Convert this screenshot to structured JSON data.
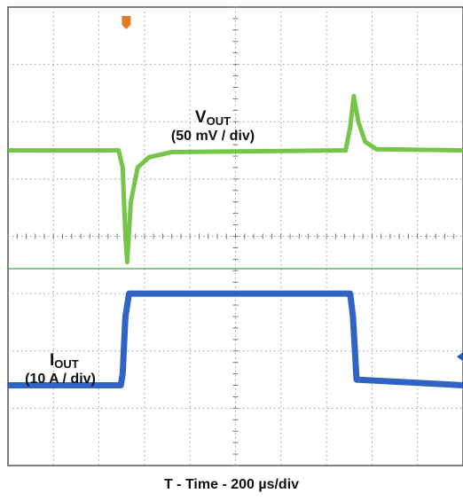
{
  "chart_data": {
    "type": "line",
    "title": "",
    "xlabel": "T - Time - 200 µs/div",
    "ylabel": "",
    "grid": true,
    "divisions": {
      "x": 10,
      "y": 8
    },
    "xlim": [
      0,
      10
    ],
    "ylim": [
      0,
      8
    ],
    "x_unit": "div (200 µs/div)",
    "series": [
      {
        "name": "VOUT",
        "name_main": "V",
        "name_sub": "OUT",
        "scale_label": "(50 mV / div)",
        "color": "#6abf3a",
        "x": [
          0,
          2.43,
          2.52,
          2.58,
          2.62,
          2.7,
          2.85,
          3.1,
          3.6,
          7.42,
          7.52,
          7.6,
          7.7,
          7.85,
          8.1,
          10
        ],
        "y": [
          5.5,
          5.5,
          5.2,
          4.0,
          3.55,
          4.6,
          5.2,
          5.38,
          5.47,
          5.5,
          5.9,
          6.45,
          6.0,
          5.65,
          5.52,
          5.5
        ]
      },
      {
        "name": "IOUT",
        "name_main": "I",
        "name_sub": "OUT",
        "scale_label": "(10 A / div)",
        "color": "#1f56c0",
        "x": [
          0,
          2.48,
          2.52,
          2.58,
          2.66,
          7.52,
          7.58,
          7.66,
          10
        ],
        "y": [
          1.4,
          1.4,
          1.6,
          2.6,
          3.0,
          3.0,
          2.6,
          1.5,
          1.4
        ]
      }
    ],
    "ground_marker_color": "#e07b20",
    "reference_line_color": "#3aa84a"
  }
}
